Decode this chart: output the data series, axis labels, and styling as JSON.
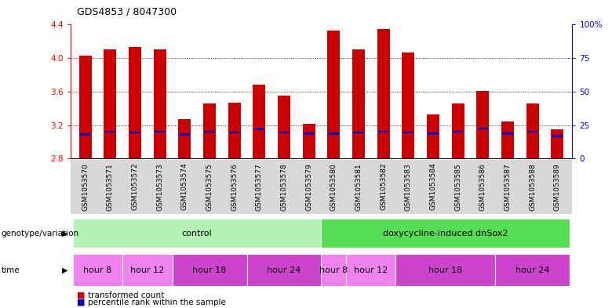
{
  "title": "GDS4853 / 8047300",
  "samples": [
    "GSM1053570",
    "GSM1053571",
    "GSM1053572",
    "GSM1053573",
    "GSM1053574",
    "GSM1053575",
    "GSM1053576",
    "GSM1053577",
    "GSM1053578",
    "GSM1053579",
    "GSM1053580",
    "GSM1053581",
    "GSM1053582",
    "GSM1053583",
    "GSM1053584",
    "GSM1053585",
    "GSM1053586",
    "GSM1053587",
    "GSM1053588",
    "GSM1053589"
  ],
  "bar_heights": [
    4.03,
    4.1,
    4.13,
    4.1,
    3.27,
    3.46,
    3.47,
    3.68,
    3.55,
    3.22,
    4.33,
    4.1,
    4.35,
    4.07,
    3.33,
    3.46,
    3.61,
    3.24,
    3.46,
    3.15
  ],
  "blue_marker_pos": [
    3.09,
    3.12,
    3.11,
    3.12,
    3.09,
    3.12,
    3.11,
    3.15,
    3.11,
    3.1,
    3.1,
    3.11,
    3.12,
    3.11,
    3.1,
    3.12,
    3.16,
    3.1,
    3.12,
    3.07
  ],
  "bar_color": "#cc0000",
  "blue_color": "#0000cc",
  "ymin": 2.8,
  "ymax": 4.4,
  "y_ticks_left": [
    2.8,
    3.2,
    3.6,
    4.0,
    4.4
  ],
  "y_right_labels": [
    "0",
    "25",
    "50",
    "75",
    "100%"
  ],
  "y_ticks_right_pct": [
    0,
    25,
    50,
    75,
    100
  ],
  "grid_values": [
    3.2,
    3.6,
    4.0
  ],
  "genotype_groups": [
    {
      "label": "control",
      "start": 0,
      "end": 9,
      "color": "#b3f0b3"
    },
    {
      "label": "doxycycline-induced dnSox2",
      "start": 10,
      "end": 19,
      "color": "#55dd55"
    }
  ],
  "time_spans": [
    {
      "label": "hour 8",
      "indices": [
        0,
        1
      ],
      "color": "#ee82ee"
    },
    {
      "label": "hour 12",
      "indices": [
        2,
        3
      ],
      "color": "#ee82ee"
    },
    {
      "label": "hour 18",
      "indices": [
        4,
        5,
        6
      ],
      "color": "#cc44cc"
    },
    {
      "label": "hour 24",
      "indices": [
        7,
        8,
        9
      ],
      "color": "#cc44cc"
    },
    {
      "label": "hour 8",
      "indices": [
        10
      ],
      "color": "#ee82ee"
    },
    {
      "label": "hour 12",
      "indices": [
        11,
        12
      ],
      "color": "#ee82ee"
    },
    {
      "label": "hour 18",
      "indices": [
        13,
        14,
        15,
        16
      ],
      "color": "#cc44cc"
    },
    {
      "label": "hour 24",
      "indices": [
        17,
        18,
        19
      ],
      "color": "#cc44cc"
    }
  ],
  "legend_items": [
    {
      "label": "transformed count",
      "color": "#cc0000"
    },
    {
      "label": "percentile rank within the sample",
      "color": "#0000cc"
    }
  ],
  "bar_width": 0.5,
  "background_color": "#ffffff",
  "label_area_color": "#d8d8d8"
}
